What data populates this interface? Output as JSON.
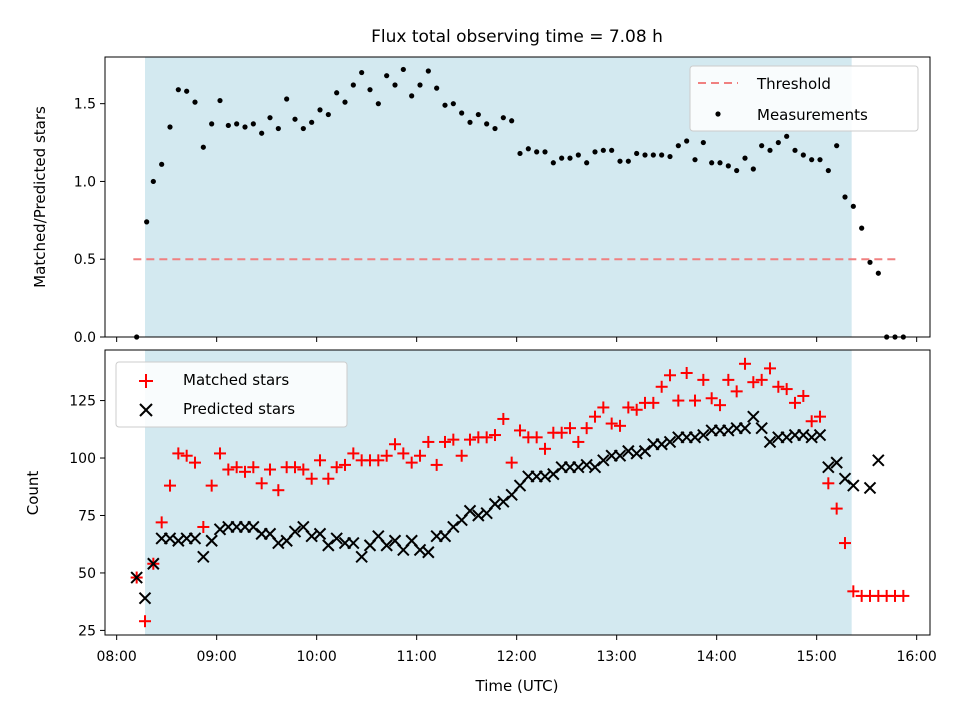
{
  "chart_data": [
    {
      "type": "scatter",
      "title": "Flux total observing time = 7.08 h",
      "xlabel": "",
      "ylabel": "Matched/Predicted stars",
      "x_ticks": [
        "08:00",
        "09:00",
        "10:00",
        "11:00",
        "12:00",
        "13:00",
        "14:00",
        "15:00",
        "16:00"
      ],
      "xlim": [
        "07:53",
        "16:08"
      ],
      "ylim": [
        0,
        1.8
      ],
      "y_ticks": [
        "0.0",
        "0.5",
        "1.0",
        "1.5"
      ],
      "shaded_interval": [
        "08:17",
        "15:21"
      ],
      "shade_color": "#d3e9f0",
      "threshold": 0.5,
      "threshold_range": [
        "08:10",
        "15:50"
      ],
      "legend": [
        "Threshold",
        "Measurements"
      ],
      "legend_position": "upper right",
      "series": [
        {
          "name": "Measurements",
          "color": "#000000",
          "x": [
            "08:12",
            "08:18",
            "08:22",
            "08:27",
            "08:32",
            "08:37",
            "08:42",
            "08:47",
            "08:52",
            "08:57",
            "09:02",
            "09:07",
            "09:12",
            "09:17",
            "09:22",
            "09:27",
            "09:32",
            "09:37",
            "09:42",
            "09:47",
            "09:52",
            "09:57",
            "10:02",
            "10:07",
            "10:12",
            "10:17",
            "10:22",
            "10:27",
            "10:32",
            "10:37",
            "10:42",
            "10:47",
            "10:52",
            "10:57",
            "11:02",
            "11:07",
            "11:12",
            "11:17",
            "11:22",
            "11:27",
            "11:32",
            "11:37",
            "11:42",
            "11:47",
            "11:52",
            "11:57",
            "12:02",
            "12:07",
            "12:12",
            "12:17",
            "12:22",
            "12:27",
            "12:32",
            "12:37",
            "12:42",
            "12:47",
            "12:52",
            "12:57",
            "13:02",
            "13:07",
            "13:12",
            "13:17",
            "13:22",
            "13:27",
            "13:32",
            "13:37",
            "13:42",
            "13:47",
            "13:52",
            "13:57",
            "14:02",
            "14:07",
            "14:12",
            "14:17",
            "14:22",
            "14:27",
            "14:32",
            "14:37",
            "14:42",
            "14:47",
            "14:52",
            "14:57",
            "15:02",
            "15:07",
            "15:12",
            "15:17",
            "15:22",
            "15:27",
            "15:32",
            "15:37",
            "15:42",
            "15:47",
            "15:52"
          ],
          "y": [
            0.0,
            0.74,
            1.0,
            1.11,
            1.35,
            1.59,
            1.58,
            1.51,
            1.22,
            1.37,
            1.52,
            1.36,
            1.37,
            1.35,
            1.37,
            1.31,
            1.41,
            1.34,
            1.53,
            1.4,
            1.34,
            1.38,
            1.46,
            1.43,
            1.57,
            1.51,
            1.62,
            1.7,
            1.59,
            1.5,
            1.68,
            1.62,
            1.72,
            1.55,
            1.62,
            1.71,
            1.6,
            1.49,
            1.5,
            1.44,
            1.38,
            1.43,
            1.37,
            1.34,
            1.41,
            1.39,
            1.18,
            1.21,
            1.19,
            1.19,
            1.12,
            1.15,
            1.15,
            1.17,
            1.12,
            1.19,
            1.2,
            1.2,
            1.13,
            1.13,
            1.18,
            1.17,
            1.17,
            1.17,
            1.16,
            1.23,
            1.26,
            1.14,
            1.25,
            1.12,
            1.12,
            1.1,
            1.07,
            1.15,
            1.08,
            1.23,
            1.2,
            1.25,
            1.29,
            1.2,
            1.17,
            1.14,
            1.14,
            1.07,
            1.23,
            0.9,
            0.84,
            0.7,
            0.48,
            0.41,
            0.0,
            0.0,
            0.0
          ]
        }
      ]
    },
    {
      "type": "scatter",
      "title": "",
      "xlabel": "Time (UTC)",
      "ylabel": "Count",
      "x_ticks": [
        "08:00",
        "09:00",
        "10:00",
        "11:00",
        "12:00",
        "13:00",
        "14:00",
        "15:00",
        "16:00"
      ],
      "xlim": [
        "07:53",
        "16:08"
      ],
      "ylim": [
        23,
        147
      ],
      "y_ticks": [
        25,
        50,
        75,
        100,
        125
      ],
      "shaded_interval": [
        "08:17",
        "15:21"
      ],
      "shade_color": "#d3e9f0",
      "legend": [
        "Matched stars",
        "Predicted stars"
      ],
      "legend_position": "upper left",
      "series": [
        {
          "name": "Matched stars",
          "color": "#ff0000",
          "marker": "plus",
          "x": [
            "08:12",
            "08:17",
            "08:22",
            "08:27",
            "08:32",
            "08:37",
            "08:42",
            "08:47",
            "08:52",
            "08:57",
            "09:02",
            "09:07",
            "09:12",
            "09:17",
            "09:22",
            "09:27",
            "09:32",
            "09:37",
            "09:42",
            "09:47",
            "09:52",
            "09:57",
            "10:02",
            "10:07",
            "10:12",
            "10:17",
            "10:22",
            "10:27",
            "10:32",
            "10:37",
            "10:42",
            "10:47",
            "10:52",
            "10:57",
            "11:02",
            "11:07",
            "11:12",
            "11:17",
            "11:22",
            "11:27",
            "11:32",
            "11:37",
            "11:42",
            "11:47",
            "11:52",
            "11:57",
            "12:02",
            "12:07",
            "12:12",
            "12:17",
            "12:22",
            "12:27",
            "12:32",
            "12:37",
            "12:42",
            "12:47",
            "12:52",
            "12:57",
            "13:02",
            "13:07",
            "13:12",
            "13:17",
            "13:22",
            "13:27",
            "13:32",
            "13:37",
            "13:42",
            "13:47",
            "13:52",
            "13:57",
            "14:02",
            "14:07",
            "14:12",
            "14:17",
            "14:22",
            "14:27",
            "14:32",
            "14:37",
            "14:42",
            "14:47",
            "14:52",
            "14:57",
            "15:02",
            "15:07",
            "15:12",
            "15:17",
            "15:22",
            "15:27",
            "15:32",
            "15:37",
            "15:42",
            "15:47",
            "15:52"
          ],
          "y": [
            48,
            29,
            54,
            72,
            88,
            102,
            101,
            98,
            70,
            88,
            102,
            95,
            96,
            94,
            96,
            89,
            95,
            86,
            96,
            96,
            95,
            91,
            99,
            91,
            96,
            97,
            102,
            99,
            99,
            99,
            101,
            106,
            102,
            98,
            101,
            107,
            97,
            107,
            108,
            101,
            108,
            109,
            109,
            110,
            117,
            98,
            112,
            109,
            109,
            104,
            111,
            111,
            113,
            107,
            113,
            118,
            122,
            115,
            114,
            122,
            121,
            124,
            124,
            131,
            136,
            125,
            137,
            125,
            134,
            126,
            123,
            134,
            129,
            141,
            133,
            134,
            139,
            131,
            130,
            124,
            127,
            116,
            118,
            89,
            78,
            63,
            42,
            40,
            40,
            40,
            40,
            40,
            40
          ]
        },
        {
          "name": "Predicted stars",
          "color": "#000000",
          "marker": "x",
          "x": [
            "08:12",
            "08:17",
            "08:22",
            "08:27",
            "08:32",
            "08:37",
            "08:42",
            "08:47",
            "08:52",
            "08:57",
            "09:02",
            "09:07",
            "09:12",
            "09:17",
            "09:22",
            "09:27",
            "09:32",
            "09:37",
            "09:42",
            "09:47",
            "09:52",
            "09:57",
            "10:02",
            "10:07",
            "10:12",
            "10:17",
            "10:22",
            "10:27",
            "10:32",
            "10:37",
            "10:42",
            "10:47",
            "10:52",
            "10:57",
            "11:02",
            "11:07",
            "11:12",
            "11:17",
            "11:22",
            "11:27",
            "11:32",
            "11:37",
            "11:42",
            "11:47",
            "11:52",
            "11:57",
            "12:02",
            "12:07",
            "12:12",
            "12:17",
            "12:22",
            "12:27",
            "12:32",
            "12:37",
            "12:42",
            "12:47",
            "12:52",
            "12:57",
            "13:02",
            "13:07",
            "13:12",
            "13:17",
            "13:22",
            "13:27",
            "13:32",
            "13:37",
            "13:42",
            "13:47",
            "13:52",
            "13:57",
            "14:02",
            "14:07",
            "14:12",
            "14:17",
            "14:22",
            "14:27",
            "14:32",
            "14:37",
            "14:42",
            "14:47",
            "14:52",
            "14:57",
            "15:02",
            "15:07",
            "15:12",
            "15:17",
            "15:22"
          ],
          "y": [
            48,
            39,
            54,
            65,
            65,
            64,
            65,
            65,
            57,
            64,
            69,
            70,
            70,
            70,
            70,
            67,
            67,
            63,
            64,
            68,
            70,
            66,
            67,
            62,
            65,
            63,
            63,
            57,
            62,
            66,
            62,
            64,
            60,
            64,
            60,
            59,
            66,
            66,
            70,
            73,
            77,
            75,
            76,
            80,
            81,
            84,
            88,
            92,
            92,
            92,
            93,
            96,
            96,
            96,
            97,
            96,
            99,
            101,
            101,
            103,
            102,
            103,
            106,
            106,
            107,
            109,
            109,
            109,
            110,
            112,
            112,
            112,
            113,
            113,
            118,
            113,
            107,
            109,
            109,
            110,
            110,
            109,
            110,
            96,
            98,
            91,
            88
          ]
        }
      ],
      "extra_points": {
        "predicted_stars": {
          "x": [
            "15:32",
            "15:37"
          ],
          "y": [
            87,
            99
          ]
        }
      }
    }
  ]
}
